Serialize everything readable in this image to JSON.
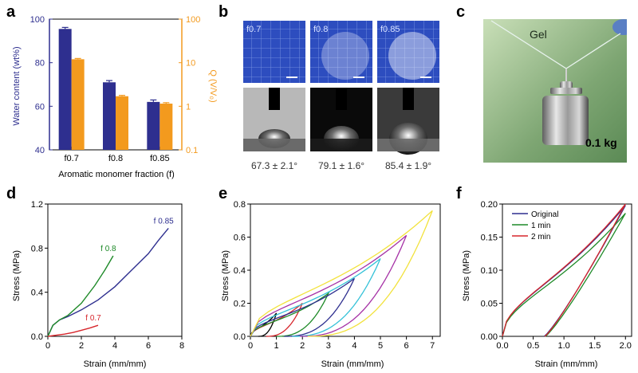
{
  "panels": {
    "a": {
      "letter": "a",
      "chart_data": {
        "type": "bar",
        "categories": [
          "f0.7",
          "f0.8",
          "f0.85"
        ],
        "series": [
          {
            "name": "Water content (wt%)",
            "axis": "left",
            "color": "#2e2f8f",
            "values": [
              95.5,
              71,
              62
            ],
            "errors": [
              0.7,
              0.8,
              0.9
            ]
          },
          {
            "name": "Q (V/V0)",
            "axis": "right",
            "color": "#f39a1e",
            "values": [
              12,
              1.7,
              1.15
            ],
            "errors": [
              0.5,
              0.08,
              0.06
            ]
          }
        ],
        "xlabel": "Aromatic monomer fraction (f)",
        "ylabel": "Water content (wt%)",
        "ylabel_right": "Q (V/V₀)",
        "ylim": [
          40,
          100
        ],
        "yticks": [
          "40",
          "60",
          "80",
          "100"
        ],
        "ylim_right": [
          0.1,
          100
        ],
        "yscale_right": "log",
        "yticks_right": [
          "0.1",
          "1",
          "10",
          "100"
        ],
        "left_axis_color": "#2e2f8f",
        "right_axis_color": "#f39a1e"
      }
    },
    "b": {
      "letter": "b",
      "samples": [
        {
          "label": "f0.7",
          "angle": "67.3 ± 2.1°"
        },
        {
          "label": "f0.8",
          "angle": "79.1 ± 1.6°"
        },
        {
          "label": "f0.85",
          "angle": "85.4 ± 1.9°"
        }
      ]
    },
    "c": {
      "letter": "c",
      "gel_label": "Gel",
      "weight_label": "0.1 kg"
    },
    "d": {
      "letter": "d",
      "chart_data": {
        "type": "line",
        "xlabel": "Strain (mm/mm)",
        "ylabel": "Stress (MPa)",
        "xlim": [
          0,
          8
        ],
        "ylim": [
          0,
          1.2
        ],
        "xticks": [
          "0",
          "2",
          "4",
          "6",
          "8"
        ],
        "yticks": [
          "0.0",
          "0.4",
          "0.8",
          "1.2"
        ],
        "series": [
          {
            "name": "f 0.85",
            "color": "#2e2f8f",
            "x": [
              0,
              0.3,
              0.7,
              1.2,
              2,
              3,
              4,
              5,
              6,
              6.6,
              7.2
            ],
            "y": [
              0,
              0.1,
              0.15,
              0.18,
              0.24,
              0.33,
              0.45,
              0.6,
              0.75,
              0.87,
              0.98
            ]
          },
          {
            "name": "f 0.8",
            "color": "#1e8a28",
            "x": [
              0,
              0.3,
              0.7,
              1.2,
              2,
              2.8,
              3.4,
              3.9
            ],
            "y": [
              0,
              0.1,
              0.15,
              0.19,
              0.3,
              0.46,
              0.6,
              0.73
            ]
          },
          {
            "name": "f 0.7",
            "color": "#d7262c",
            "x": [
              0,
              0.5,
              1,
              1.5,
              2,
              2.5,
              3
            ],
            "y": [
              0,
              0.01,
              0.02,
              0.035,
              0.055,
              0.075,
              0.1
            ]
          }
        ]
      }
    },
    "e": {
      "letter": "e",
      "chart_data": {
        "type": "line",
        "xlabel": "Strain (mm/mm)",
        "ylabel": "Stress (MPa)",
        "xlim": [
          0,
          7.3
        ],
        "ylim": [
          0,
          0.8
        ],
        "xticks": [
          "0",
          "1",
          "2",
          "3",
          "4",
          "5",
          "6",
          "7"
        ],
        "yticks": [
          "0.0",
          "0.2",
          "0.4",
          "0.6",
          "0.8"
        ],
        "cycles": [
          {
            "max_strain": 1,
            "peak_stress": 0.14,
            "residual": 0.3,
            "color": "#000000"
          },
          {
            "max_strain": 2,
            "peak_stress": 0.2,
            "residual": 0.6,
            "color": "#d7262c"
          },
          {
            "max_strain": 3,
            "peak_stress": 0.26,
            "residual": 1.0,
            "color": "#1e8a28"
          },
          {
            "max_strain": 4,
            "peak_stress": 0.35,
            "residual": 1.3,
            "color": "#2e2f8f"
          },
          {
            "max_strain": 5,
            "peak_stress": 0.47,
            "residual": 1.6,
            "color": "#35c2d8"
          },
          {
            "max_strain": 6,
            "peak_stress": 0.61,
            "residual": 1.9,
            "color": "#a632a6"
          },
          {
            "max_strain": 7,
            "peak_stress": 0.76,
            "residual": 2.2,
            "color": "#f2e23c"
          }
        ]
      }
    },
    "f": {
      "letter": "f",
      "chart_data": {
        "type": "line",
        "xlabel": "Strain (mm/mm)",
        "ylabel": "Stress (MPa)",
        "xlim": [
          0,
          2.1
        ],
        "ylim": [
          0,
          0.2
        ],
        "xticks": [
          "0.0",
          "0.5",
          "1.0",
          "1.5",
          "2.0"
        ],
        "yticks": [
          "0.00",
          "0.05",
          "0.10",
          "0.15",
          "0.20"
        ],
        "series": [
          {
            "name": "Original",
            "color": "#2e2f8f",
            "peak_stress": 0.198,
            "residual": 0.68
          },
          {
            "name": "1 min",
            "color": "#1e8a28",
            "peak_stress": 0.186,
            "residual": 0.7
          },
          {
            "name": "2 min",
            "color": "#d7262c",
            "peak_stress": 0.2,
            "residual": 0.69
          }
        ]
      }
    }
  }
}
